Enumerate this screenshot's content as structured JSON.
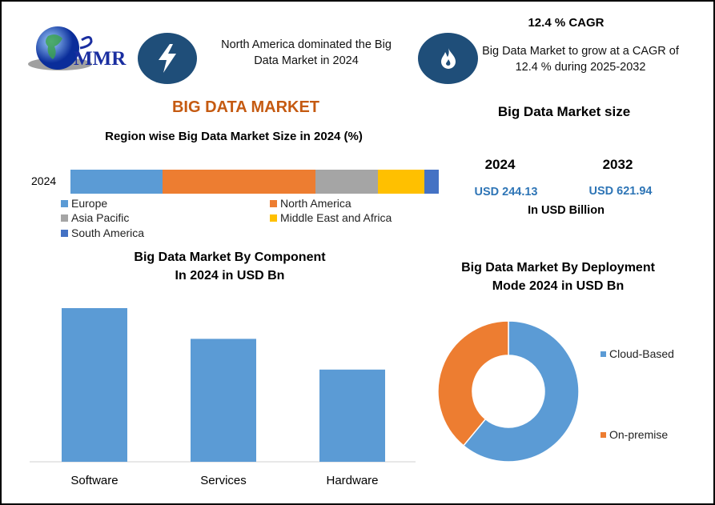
{
  "logo": {
    "text": "MMR"
  },
  "header": {
    "fact1": "North America dominated the Big Data Market in 2024",
    "cagr_title": "12.4 % CAGR",
    "fact2": "Big Data Market to grow at a CAGR of 12.4 % during 2025-2032"
  },
  "main_title": "BIG DATA MARKET",
  "market_size": {
    "title": "Big Data Market size",
    "years": [
      "2024",
      "2032"
    ],
    "values": [
      "USD 244.13",
      "USD 621.94"
    ],
    "unit": "In USD Billion"
  },
  "colors": {
    "europe": "#5b9bd5",
    "north_america": "#ed7d31",
    "asia_pacific": "#a5a5a5",
    "mea": "#ffc000",
    "south_america": "#4472c4",
    "bar": "#5b9bd5",
    "icon_bg": "#1f4e79",
    "title": "#c55a11",
    "value": "#2e75b6"
  },
  "chart_data": [
    {
      "type": "bar",
      "stacked": true,
      "orientation": "horizontal",
      "title": "Region wise Big Data Market Size in 2024 (%)",
      "categories": [
        "2024"
      ],
      "series": [
        {
          "name": "Europe",
          "values": [
            25
          ]
        },
        {
          "name": "North America",
          "values": [
            41.5
          ]
        },
        {
          "name": "Asia Pacific",
          "values": [
            17
          ]
        },
        {
          "name": "Middle East and Africa",
          "values": [
            12.5
          ]
        },
        {
          "name": "South America",
          "values": [
            4
          ]
        }
      ],
      "legend": "bottom"
    },
    {
      "type": "bar",
      "title": "Big Data Market By Component In 2024 in USD Bn",
      "title_lines": [
        "Big Data Market By Component",
        "In 2024 in USD Bn"
      ],
      "categories": [
        "Software",
        "Services",
        "Hardware"
      ],
      "values": [
        100,
        80,
        60
      ],
      "ylabel": "",
      "grid": false
    },
    {
      "type": "pie",
      "donut": true,
      "title": "Big Data Market By Deployment Mode 2024 in USD Bn",
      "title_lines": [
        "Big Data Market By Deployment",
        "Mode 2024 in USD Bn"
      ],
      "labels": [
        "Cloud-Based",
        "On-premise"
      ],
      "values": [
        61,
        39
      ],
      "legend": "right"
    }
  ]
}
